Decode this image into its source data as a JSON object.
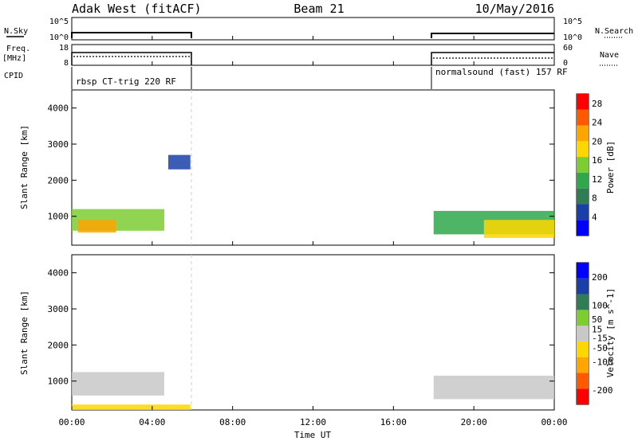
{
  "header": {
    "station": "Adak West (fitACF)",
    "beam": "Beam 21",
    "date": "10/May/2016"
  },
  "top_panels": {
    "nsky_label": "N.Sky",
    "nsearch_label": "N.Search",
    "freq_label": "Freq.",
    "mhz_label": "[MHz]",
    "nave_label": "Nave",
    "cpid_label": "CPID",
    "noise_left_ticks": [
      "10^5",
      "10^0"
    ],
    "noise_right_ticks": [
      "10^5",
      "10^0"
    ],
    "freq_left_ticks": [
      "18",
      "8"
    ],
    "freq_right_ticks": [
      "60",
      "0"
    ],
    "cpid_left": "rbsp CT-trig 220 RF",
    "cpid_right": "normalsound (fast) 157 RF"
  },
  "colors": {
    "power": [
      "#0000ff",
      "#1a3fa8",
      "#2e7d55",
      "#2ea84a",
      "#7ccd32",
      "#ffd700",
      "#ffa500",
      "#ff5a00",
      "#ff0000"
    ],
    "velocity": [
      "#ff0000",
      "#ff5a00",
      "#ffa500",
      "#ffd700",
      "#c8c8c8",
      "#7ccd32",
      "#2e7d55",
      "#1a3fa8",
      "#0000ff"
    ],
    "ground": "#c8c8c8"
  },
  "chart_data": [
    {
      "type": "heatmap",
      "title": "",
      "xlabel": "",
      "ylabel": "Slant Range [km]",
      "x_unit": "hours UT",
      "xlim": [
        0,
        24
      ],
      "ylim": [
        200,
        4500
      ],
      "x_ticks": [
        "00:00",
        "04:00",
        "08:00",
        "12:00",
        "16:00",
        "20:00",
        "00:00"
      ],
      "y_ticks": [
        1000,
        2000,
        3000,
        4000
      ],
      "colorbar": {
        "label": "Power [dB]",
        "ticks": [
          4,
          8,
          12,
          16,
          20,
          24,
          28
        ],
        "range": [
          0,
          30
        ]
      },
      "gap_hours": [
        6,
        18
      ],
      "series": [
        {
          "t_start": 0.0,
          "t_end": 4.6,
          "range_km": [
            600,
            1200
          ],
          "value_db": 14
        },
        {
          "t_start": 0.3,
          "t_end": 2.2,
          "range_km": [
            550,
            900
          ],
          "value_db": 22
        },
        {
          "t_start": 4.8,
          "t_end": 5.9,
          "range_km": [
            2300,
            2700
          ],
          "value_db": 6
        },
        {
          "t_start": 18.0,
          "t_end": 24.0,
          "range_km": [
            500,
            1150
          ],
          "value_db": 12
        },
        {
          "t_start": 20.5,
          "t_end": 24.0,
          "range_km": [
            400,
            900
          ],
          "value_db": 18
        }
      ]
    },
    {
      "type": "heatmap",
      "title": "",
      "xlabel": "Time UT",
      "ylabel": "Slant Range [km]",
      "x_unit": "hours UT",
      "xlim": [
        0,
        24
      ],
      "ylim": [
        200,
        4500
      ],
      "x_ticks": [
        "00:00",
        "04:00",
        "08:00",
        "12:00",
        "16:00",
        "20:00",
        "00:00"
      ],
      "y_ticks": [
        1000,
        2000,
        3000,
        4000
      ],
      "colorbar": {
        "label": "Velocity [m s^-1]",
        "ticks": [
          -200,
          -100,
          -50,
          -15,
          15,
          50,
          100,
          200
        ],
        "range": [
          -250,
          250
        ]
      },
      "gap_hours": [
        6,
        18
      ],
      "series": [
        {
          "t_start": 0.0,
          "t_end": 4.6,
          "range_km": [
            600,
            1250
          ],
          "value": 0
        },
        {
          "t_start": 0.0,
          "t_end": 5.9,
          "range_km": [
            200,
            350
          ],
          "value": -40
        },
        {
          "t_start": 18.0,
          "t_end": 24.0,
          "range_km": [
            500,
            1150
          ],
          "value": 0
        }
      ]
    }
  ]
}
